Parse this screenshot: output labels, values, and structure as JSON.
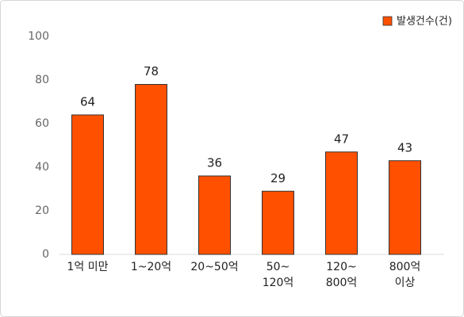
{
  "chart_data": {
    "type": "bar",
    "categories": [
      [
        "1억 미만"
      ],
      [
        "1~20억"
      ],
      [
        "20~50억"
      ],
      [
        "50~",
        "120억"
      ],
      [
        "120~",
        "800억"
      ],
      [
        "800억",
        "이상"
      ]
    ],
    "series": [
      {
        "name": "발생건수(건)",
        "color": "#ff5000",
        "values": [
          64,
          78,
          36,
          29,
          47,
          43
        ]
      }
    ],
    "ylim": [
      0,
      100
    ],
    "yticks": [
      0,
      20,
      40,
      60,
      80,
      100
    ],
    "grid": false,
    "legend": "top-right"
  }
}
